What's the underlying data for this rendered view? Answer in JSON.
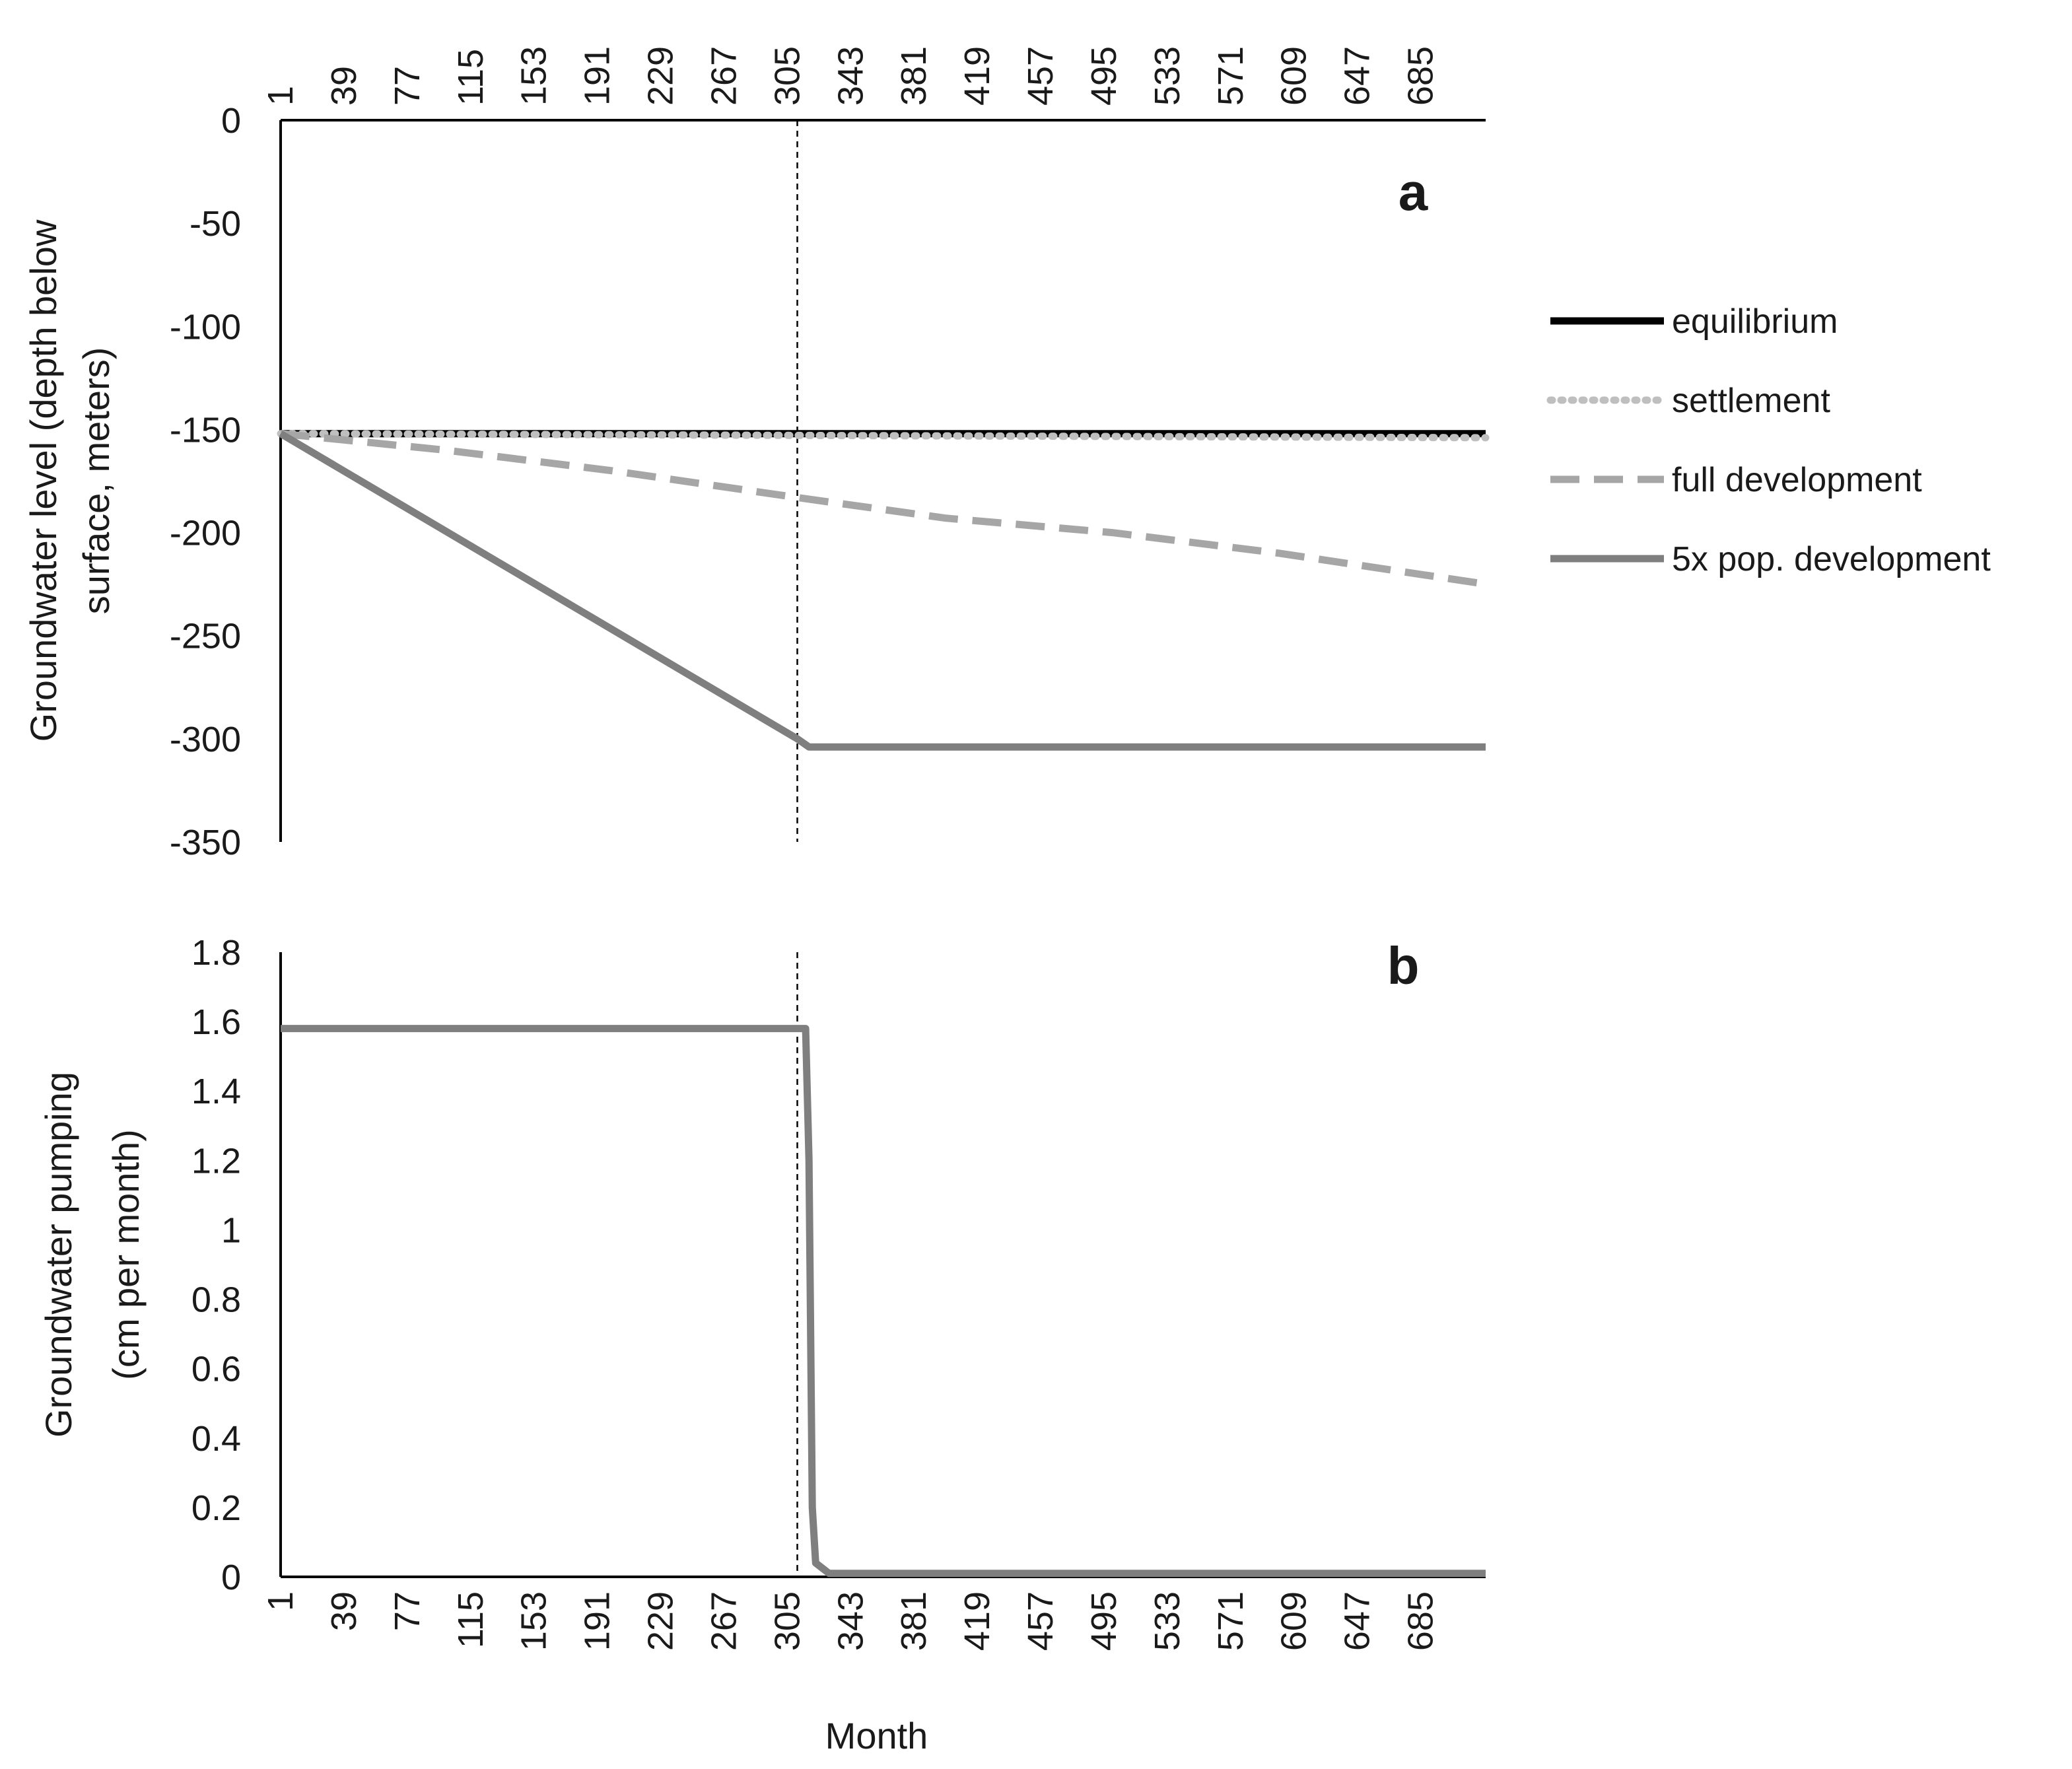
{
  "chart_data": [
    {
      "panel": "a",
      "type": "line",
      "ylabel": [
        "Groundwater level (depth below",
        "surface, meters)"
      ],
      "xlabel": "",
      "ylim": [
        -350,
        0
      ],
      "yticks": [
        0,
        -50,
        -100,
        -150,
        -200,
        -250,
        -300,
        -350
      ],
      "xlim": [
        1,
        724
      ],
      "xticks": [
        1,
        39,
        77,
        115,
        153,
        191,
        229,
        267,
        305,
        343,
        381,
        419,
        457,
        495,
        533,
        571,
        609,
        647,
        685
      ],
      "vline_x": 311,
      "series": [
        {
          "name": "equilibrium",
          "style": "solid",
          "color": "#000000",
          "x": [
            1,
            724
          ],
          "y": [
            -152,
            -152
          ]
        },
        {
          "name": "settlement",
          "style": "dotted",
          "color": "#bfbfbf",
          "x": [
            1,
            724
          ],
          "y": [
            -152,
            -154
          ]
        },
        {
          "name": "full development",
          "style": "dashed",
          "color": "#a6a6a6",
          "x": [
            1,
            100,
            200,
            311,
            400,
            500,
            600,
            724
          ],
          "y": [
            -152,
            -160,
            -170,
            -183,
            -193,
            -200,
            -210,
            -225
          ]
        },
        {
          "name": "5x pop. development",
          "style": "solid",
          "color": "#7f7f7f",
          "x": [
            1,
            311,
            318,
            724
          ],
          "y": [
            -152,
            -300,
            -304,
            -304
          ]
        }
      ]
    },
    {
      "panel": "b",
      "type": "line",
      "ylabel": [
        "Groundwater pumping",
        "(cm per month)"
      ],
      "xlabel": "Month",
      "ylim": [
        0,
        1.8
      ],
      "yticks": [
        0,
        0.2,
        0.4,
        0.6,
        0.8,
        1,
        1.2,
        1.4,
        1.6,
        1.8
      ],
      "xlim": [
        1,
        724
      ],
      "xticks": [
        1,
        39,
        77,
        115,
        153,
        191,
        229,
        267,
        305,
        343,
        381,
        419,
        457,
        495,
        533,
        571,
        609,
        647,
        685
      ],
      "vline_x": 311,
      "series": [
        {
          "name": "5x pop. development",
          "style": "solid",
          "color": "#7f7f7f",
          "x": [
            1,
            316,
            318,
            320,
            322,
            330,
            724
          ],
          "y": [
            1.58,
            1.58,
            1.2,
            0.2,
            0.04,
            0.01,
            0.01
          ]
        }
      ]
    }
  ],
  "legend": {
    "placement": "right",
    "entries": [
      {
        "label": "equilibrium",
        "style": "solid",
        "color": "#000000"
      },
      {
        "label": "settlement",
        "style": "dotted",
        "color": "#bfbfbf"
      },
      {
        "label": "full development",
        "style": "dashed",
        "color": "#a6a6a6"
      },
      {
        "label": "5x pop. development",
        "style": "solid",
        "color": "#7f7f7f"
      }
    ]
  },
  "axis_color": "#000000",
  "vline_color": "#000000"
}
